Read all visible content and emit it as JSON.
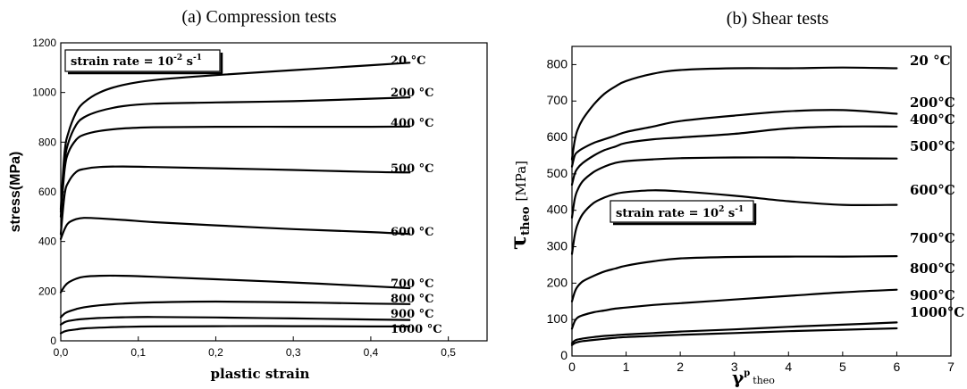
{
  "chart_data": [
    {
      "type": "line",
      "title": "(a) Compression tests",
      "xlabel": "plastic strain",
      "ylabel": "stress(MPa)",
      "xlim": [
        0,
        0.55
      ],
      "ylim": [
        0,
        1200
      ],
      "xticks": [
        0,
        0.1,
        0.2,
        0.3,
        0.4,
        0.5
      ],
      "xtick_labels": [
        "0,0",
        "0,1",
        "0,2",
        "0,3",
        "0,4",
        "0,5"
      ],
      "yticks": [
        0,
        200,
        400,
        600,
        800,
        1000,
        1200
      ],
      "ytick_labels": [
        "0",
        "200",
        "400",
        "600",
        "800",
        "1000",
        "1200"
      ],
      "annotation": {
        "text": "strain rate = 10",
        "sup": "-2",
        "unit": " s",
        "unit_sup": "-1"
      },
      "series": [
        {
          "name": "20 °C",
          "x": [
            0,
            0.005,
            0.01,
            0.02,
            0.03,
            0.05,
            0.08,
            0.12,
            0.2,
            0.3,
            0.4,
            0.45
          ],
          "y": [
            530,
            760,
            840,
            920,
            960,
            1000,
            1030,
            1050,
            1070,
            1090,
            1110,
            1120
          ]
        },
        {
          "name": "200 °C",
          "x": [
            0,
            0.005,
            0.01,
            0.02,
            0.03,
            0.05,
            0.08,
            0.12,
            0.2,
            0.3,
            0.4,
            0.45
          ],
          "y": [
            520,
            720,
            800,
            870,
            900,
            925,
            945,
            955,
            960,
            965,
            975,
            980
          ]
        },
        {
          "name": "400 °C",
          "x": [
            0,
            0.005,
            0.01,
            0.02,
            0.03,
            0.05,
            0.08,
            0.12,
            0.2,
            0.3,
            0.4,
            0.45
          ],
          "y": [
            500,
            690,
            760,
            810,
            830,
            845,
            855,
            860,
            862,
            862,
            862,
            863
          ]
        },
        {
          "name": "500 °C",
          "x": [
            0,
            0.005,
            0.01,
            0.02,
            0.03,
            0.05,
            0.08,
            0.12,
            0.2,
            0.3,
            0.4,
            0.45
          ],
          "y": [
            430,
            590,
            640,
            680,
            692,
            700,
            702,
            700,
            695,
            688,
            680,
            678
          ]
        },
        {
          "name": "600 °C",
          "x": [
            0,
            0.005,
            0.01,
            0.02,
            0.03,
            0.05,
            0.08,
            0.12,
            0.2,
            0.3,
            0.4,
            0.45
          ],
          "y": [
            410,
            450,
            475,
            490,
            495,
            493,
            487,
            478,
            465,
            450,
            438,
            430
          ]
        },
        {
          "name": "700 °C",
          "x": [
            0,
            0.005,
            0.01,
            0.02,
            0.03,
            0.05,
            0.08,
            0.12,
            0.2,
            0.3,
            0.4,
            0.45
          ],
          "y": [
            195,
            220,
            235,
            250,
            258,
            262,
            262,
            258,
            248,
            235,
            220,
            212
          ]
        },
        {
          "name": "800 °C",
          "x": [
            0,
            0.005,
            0.01,
            0.02,
            0.03,
            0.05,
            0.08,
            0.12,
            0.2,
            0.3,
            0.4,
            0.45
          ],
          "y": [
            95,
            110,
            118,
            128,
            135,
            143,
            150,
            155,
            158,
            155,
            150,
            148
          ]
        },
        {
          "name": "900 °C",
          "x": [
            0,
            0.005,
            0.01,
            0.02,
            0.03,
            0.05,
            0.08,
            0.12,
            0.2,
            0.3,
            0.4,
            0.45
          ],
          "y": [
            65,
            75,
            80,
            85,
            88,
            92,
            95,
            96,
            94,
            90,
            86,
            84
          ]
        },
        {
          "name": "1000 °C",
          "x": [
            0,
            0.005,
            0.01,
            0.02,
            0.03,
            0.05,
            0.08,
            0.12,
            0.2,
            0.3,
            0.4,
            0.45
          ],
          "y": [
            30,
            38,
            42,
            46,
            50,
            53,
            56,
            58,
            59,
            59,
            58,
            58
          ]
        }
      ]
    },
    {
      "type": "line",
      "title": "(b) Shear tests",
      "xlabel": "γ",
      "xlabel_sup": "p",
      "xlabel_sub": "theo",
      "ylabel": "τ",
      "ylabel_sub": "theo",
      "ylabel_unit": "[MPa]",
      "xlim": [
        0,
        7
      ],
      "ylim": [
        0,
        850
      ],
      "xticks": [
        0,
        1,
        2,
        3,
        4,
        5,
        6,
        7
      ],
      "xtick_labels": [
        "0",
        "1",
        "2",
        "3",
        "4",
        "5",
        "6",
        "7"
      ],
      "yticks": [
        0,
        100,
        200,
        300,
        400,
        500,
        600,
        700,
        800
      ],
      "ytick_labels": [
        "0",
        "100",
        "200",
        "300",
        "400",
        "500",
        "600",
        "700",
        "800"
      ],
      "annotation": {
        "text": "strain rate = 10",
        "sup": "2",
        "unit": " s",
        "unit_sup": "-1"
      },
      "series": [
        {
          "name": "20 °C",
          "x": [
            0,
            0.05,
            0.1,
            0.2,
            0.4,
            0.6,
            0.8,
            1,
            1.5,
            2,
            3,
            4,
            5,
            6
          ],
          "y": [
            540,
            590,
            620,
            650,
            690,
            720,
            740,
            755,
            775,
            785,
            790,
            790,
            792,
            790
          ]
        },
        {
          "name": "200°C",
          "x": [
            0,
            0.05,
            0.1,
            0.2,
            0.4,
            0.6,
            0.8,
            1,
            1.5,
            2,
            3,
            4,
            5,
            6
          ],
          "y": [
            520,
            550,
            560,
            570,
            585,
            595,
            605,
            615,
            630,
            645,
            660,
            672,
            675,
            665
          ]
        },
        {
          "name": "400°C",
          "x": [
            0,
            0.05,
            0.1,
            0.2,
            0.4,
            0.6,
            0.8,
            1,
            1.5,
            2,
            3,
            4,
            5,
            6
          ],
          "y": [
            470,
            500,
            515,
            530,
            550,
            565,
            575,
            585,
            595,
            600,
            610,
            625,
            630,
            630
          ]
        },
        {
          "name": "500°C",
          "x": [
            0,
            0.05,
            0.1,
            0.2,
            0.4,
            0.6,
            0.8,
            1,
            1.5,
            2,
            3,
            4,
            5,
            6
          ],
          "y": [
            380,
            430,
            455,
            480,
            505,
            520,
            530,
            535,
            540,
            543,
            545,
            545,
            543,
            542
          ]
        },
        {
          "name": "600°C",
          "x": [
            0,
            0.05,
            0.1,
            0.2,
            0.4,
            0.6,
            0.8,
            1,
            1.5,
            2,
            3,
            4,
            5,
            6
          ],
          "y": [
            280,
            330,
            360,
            390,
            420,
            435,
            445,
            450,
            455,
            452,
            440,
            425,
            415,
            415
          ]
        },
        {
          "name": "700°C",
          "x": [
            0,
            0.05,
            0.1,
            0.2,
            0.4,
            0.6,
            0.8,
            1,
            1.5,
            2,
            3,
            4,
            5,
            6
          ],
          "y": [
            150,
            175,
            190,
            205,
            220,
            232,
            240,
            248,
            260,
            268,
            272,
            273,
            273,
            274
          ]
        },
        {
          "name": "800°C",
          "x": [
            0,
            0.05,
            0.1,
            0.2,
            0.4,
            0.6,
            0.8,
            1,
            1.5,
            2,
            3,
            4,
            5,
            6
          ],
          "y": [
            75,
            95,
            105,
            112,
            120,
            125,
            130,
            133,
            140,
            145,
            155,
            165,
            175,
            182
          ]
        },
        {
          "name": "900°C",
          "x": [
            0,
            0.05,
            0.1,
            0.2,
            0.4,
            0.6,
            0.8,
            1,
            1.5,
            2,
            3,
            4,
            5,
            6
          ],
          "y": [
            35,
            42,
            45,
            48,
            52,
            55,
            57,
            59,
            63,
            67,
            73,
            80,
            86,
            92
          ]
        },
        {
          "name": "1000°C",
          "x": [
            0,
            0.05,
            0.1,
            0.2,
            0.4,
            0.6,
            0.8,
            1,
            1.5,
            2,
            3,
            4,
            5,
            6
          ],
          "y": [
            30,
            35,
            38,
            41,
            44,
            47,
            50,
            52,
            55,
            58,
            63,
            68,
            72,
            76
          ]
        }
      ]
    }
  ]
}
